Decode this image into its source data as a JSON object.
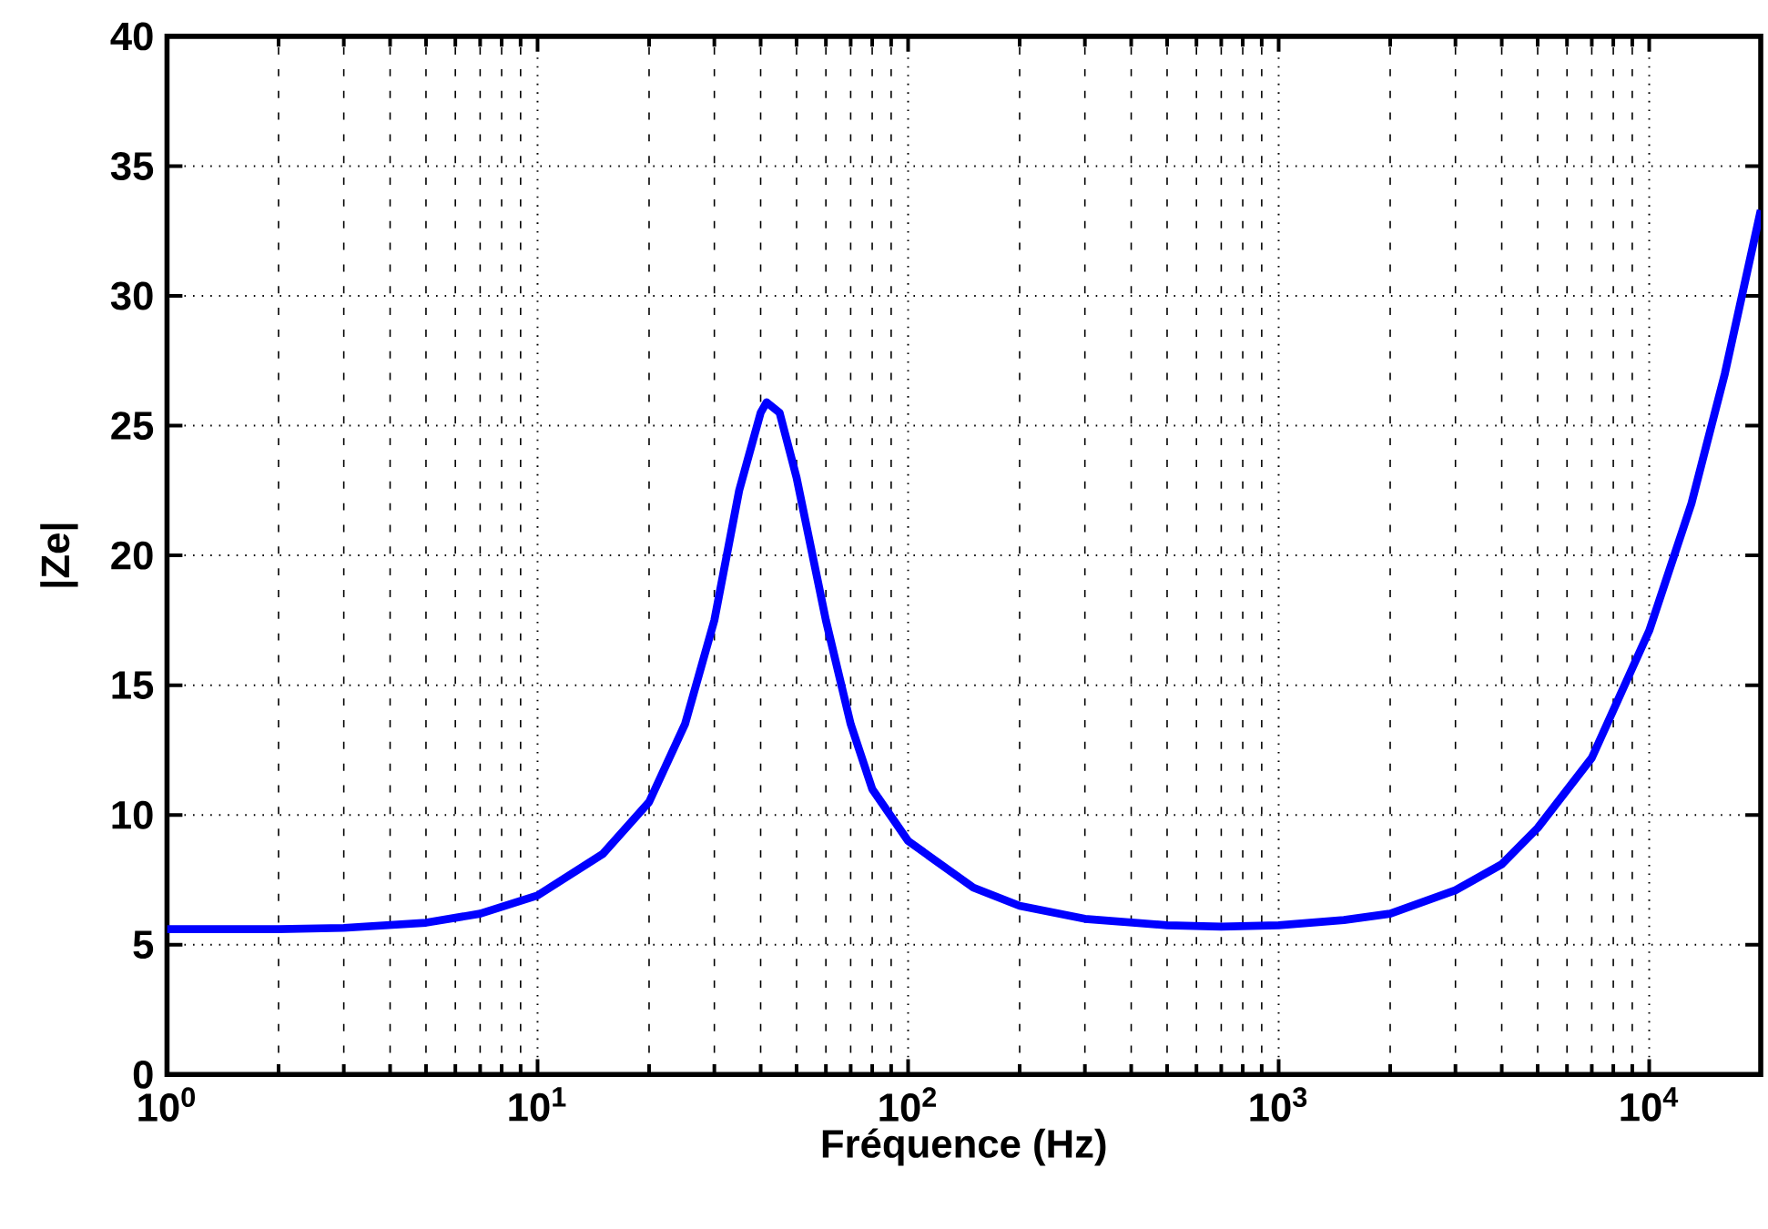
{
  "chart_data": {
    "type": "line",
    "xlabel": "Fréquence (Hz)",
    "ylabel": "|Ze|",
    "log": "x",
    "grid": true,
    "marker": "none",
    "line_style": "solid",
    "xlim": [
      1,
      20000
    ],
    "ylim": [
      0,
      40
    ],
    "xticks": [
      {
        "value": 1,
        "label": "10$^{0}$"
      },
      {
        "value": 10,
        "label": "10$^{1}$"
      },
      {
        "value": 100,
        "label": "10$^{2}$"
      },
      {
        "value": 1000,
        "label": "10$^{3}$"
      },
      {
        "value": 10000,
        "label": "10$^{4}$"
      }
    ],
    "yticks": [
      0,
      5,
      10,
      15,
      20,
      25,
      30,
      35,
      40
    ],
    "x": [
      1,
      2,
      3,
      5,
      7,
      10,
      15,
      20,
      25,
      30,
      35,
      40,
      41.5,
      45,
      50,
      60,
      70,
      80,
      100,
      150,
      200,
      300,
      500,
      700,
      1000,
      1500,
      2000,
      3000,
      4000,
      5000,
      7000,
      10000,
      13000,
      16000,
      20000
    ],
    "series": [
      {
        "color": "#0000ff",
        "values": [
          5.6,
          5.6,
          5.65,
          5.85,
          6.2,
          6.9,
          8.5,
          10.5,
          13.5,
          17.5,
          22.5,
          25.5,
          25.9,
          25.5,
          23.0,
          17.5,
          13.5,
          11.0,
          9.0,
          7.2,
          6.5,
          6.0,
          5.75,
          5.7,
          5.75,
          5.95,
          6.2,
          7.1,
          8.1,
          9.5,
          12.2,
          17.1,
          22.0,
          27.0,
          33.3
        ]
      }
    ]
  }
}
